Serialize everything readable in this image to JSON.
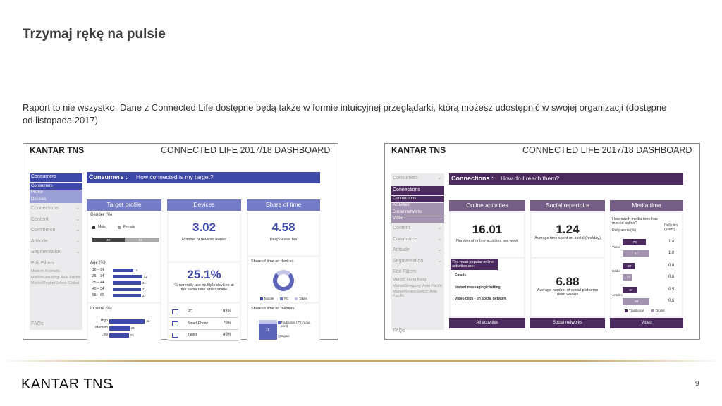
{
  "slide": {
    "title": "Trzymaj rękę na pulsie",
    "body": "Raport to nie wszystko. Dane z Connected Life dostępne będą także w formie intuicyjnej przeglądarki, którą możesz udostępnić w swojej organizacji (dostępne od listopada 2017)",
    "footer_logo": "KANTAR TNS",
    "page_number": "9"
  },
  "dashboards": [
    {
      "logo": "KANTAR TNS",
      "header": "CONNECTED LIFE 2017/18 DASHBOARD",
      "sidebar": {
        "section": "Consumers",
        "sub": [
          "Consumers",
          "Profile",
          "Devices"
        ],
        "items": [
          "Connections",
          "Content",
          "Commerce",
          "Attitude",
          "Segmentation"
        ],
        "filters_title": "Edit Filters",
        "filters": [
          "Market: Australia",
          "MarketGrouping: Asia Pacific",
          "MarketRegionSelect: Global"
        ],
        "faq": "FAQs"
      },
      "banner": {
        "label": "Consumers :",
        "question": "How connected is my target?"
      },
      "target_profile": {
        "title": "Target profile",
        "gender_title": "Gender (%)",
        "gender_legend": [
          "Male",
          "Female"
        ],
        "gender_values": [
          48,
          52
        ],
        "age_title": "Age (%)",
        "age": {
          "categories": [
            "16 – 24",
            "25 – 34",
            "35 – 44",
            "45 – 54",
            "55 – 65"
          ],
          "values": [
            15,
            22,
            21,
            21,
            21
          ]
        },
        "income_title": "Income (%)",
        "income": {
          "categories": [
            "High",
            "Medium",
            "Low"
          ],
          "values": [
            42,
            24,
            23
          ]
        }
      },
      "devices": {
        "title": "Devices",
        "count": "3.02",
        "count_label": "Number of devices owned",
        "multi": "25.1%",
        "multi_label": "% normally use multiple devices at the same time when online",
        "list": [
          {
            "name": "PC",
            "value": "93%"
          },
          {
            "name": "Smart Phone",
            "value": "79%"
          },
          {
            "name": "Tablet",
            "value": "49%"
          }
        ]
      },
      "share_of_time": {
        "title": "Share of time",
        "hours": "4.58",
        "hours_label": "Daily device hrs",
        "devices_title": "Share of time on devices",
        "legend": [
          "Mobile",
          "PC",
          "Tablet"
        ],
        "medium_title": "Share of time on medium",
        "medium_legend": [
          "Traditional (TV, radio, print)",
          "Digital"
        ],
        "traditional": 71
      }
    },
    {
      "logo": "KANTAR TNS",
      "header": "CONNECTED LIFE 2017/18 DASHBOARD",
      "sidebar": {
        "section": "Consumers",
        "current": "Connections",
        "sub": [
          "Connections",
          "Activities",
          "Social networks",
          "Video"
        ],
        "items": [
          "Content",
          "Commerce",
          "Attitude",
          "Segmentation"
        ],
        "filters_title": "Edit Filters",
        "filters": [
          "Market: Hong Kong",
          "MarketGrouping: Asia Pacific",
          "MarketRegionSelect: Asia Pacific"
        ],
        "faq": "FAQs"
      },
      "banner": {
        "label": "Connections :",
        "question": "How do I reach them?"
      },
      "online_activities": {
        "title": "Online activities",
        "count": "16.01",
        "count_label": "Number of online activities per week",
        "popular_title": "The most popular online activities are:",
        "popular": [
          "Emails",
          "Instant messaging/chatting",
          "Video clips - on social network"
        ],
        "footer": "All activities"
      },
      "social_repertoire": {
        "title": "Social repertoire",
        "time": "1.24",
        "time_label": "Average time spent on social (hrs/day)",
        "platforms": "6.88",
        "platforms_label": "Average number of social platforms used weekly",
        "footer": "Social networks"
      },
      "media_time": {
        "title": "Media time",
        "question": "How much media time has moved online?",
        "users_title": "Daily users (%)",
        "hrs_title": "Daily hrs (users)",
        "groups": [
          {
            "name": "Video",
            "traditional": 73,
            "digital": 67,
            "traditional_hrs": "1.8",
            "digital_hrs": "1.0"
          },
          {
            "name": "Radio",
            "traditional": 37,
            "digital": 24,
            "traditional_hrs": "0.8",
            "digital_hrs": "0.6"
          },
          {
            "name": "Articles",
            "traditional": 47,
            "digital": 69,
            "traditional_hrs": "0.5",
            "digital_hrs": "0.6"
          }
        ],
        "legend": [
          "Traditional",
          "Digital"
        ],
        "footer": "Video"
      }
    }
  ]
}
